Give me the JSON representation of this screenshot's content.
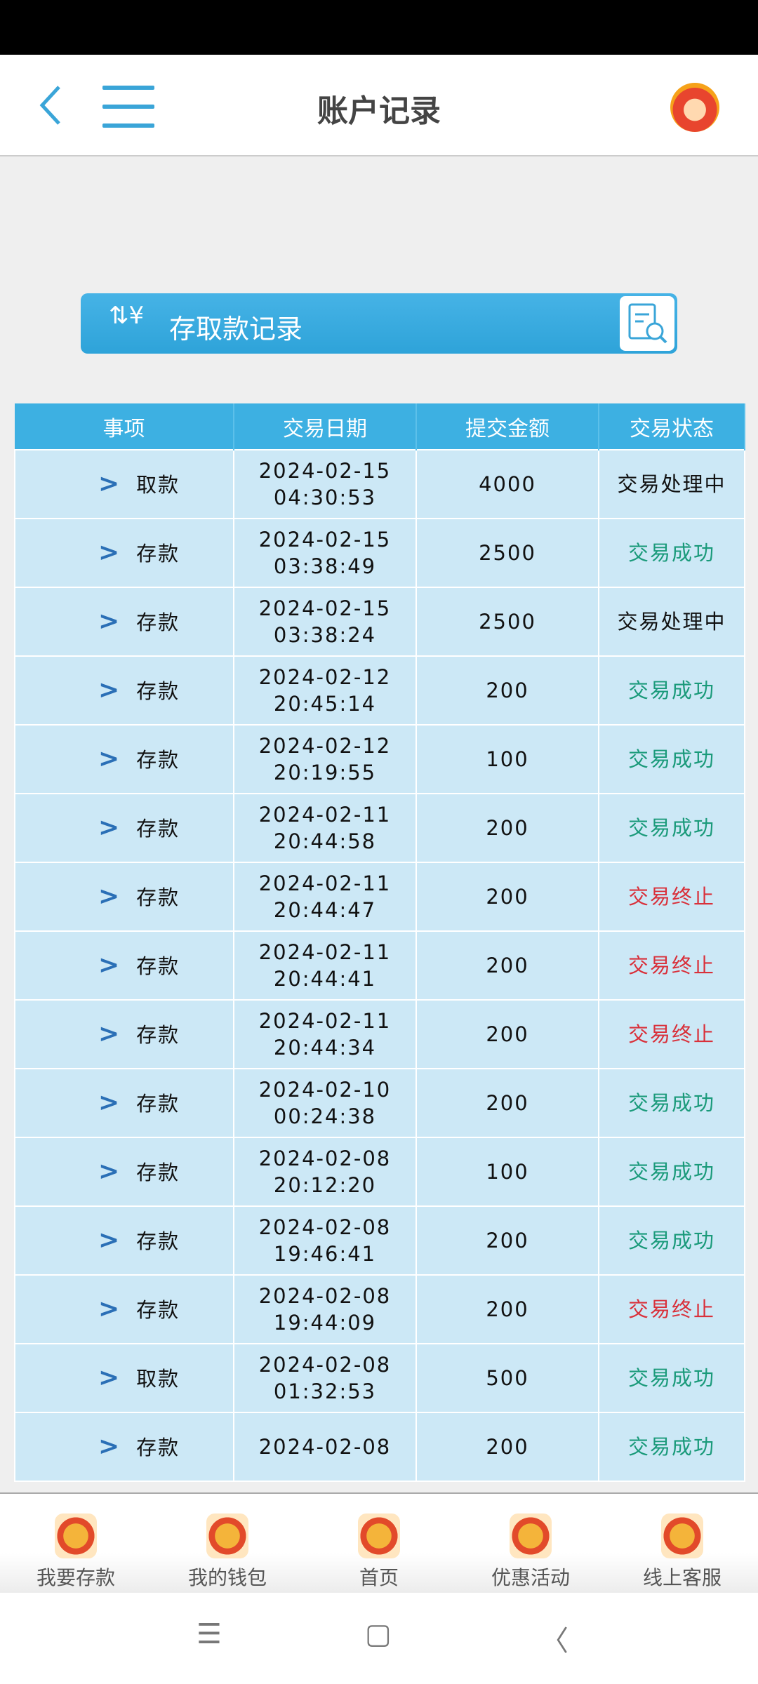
{
  "header": {
    "title": "账户记录",
    "back_icon": "chevron-left-icon",
    "menu_icon": "hamburger-icon",
    "avatar_icon": "dragon-avatar-icon"
  },
  "banner": {
    "label": "存取款记录",
    "left_icon": "yen-exchange-icon",
    "right_icon": "search-document-icon"
  },
  "colors": {
    "header": "#3db0e2",
    "row": "#cce8f6",
    "success": "#1a9a7a",
    "stopped": "#d9303a",
    "chevron": "#2a6fb6"
  },
  "table": {
    "columns": [
      "事项",
      "交易日期",
      "提交金额",
      "交易状态"
    ],
    "rows": [
      {
        "item": "取款",
        "date": "2024-02-15",
        "time": "04:30:53",
        "amount": "4000",
        "status": "交易处理中",
        "kind": "pend"
      },
      {
        "item": "存款",
        "date": "2024-02-15",
        "time": "03:38:49",
        "amount": "2500",
        "status": "交易成功",
        "kind": "ok"
      },
      {
        "item": "存款",
        "date": "2024-02-15",
        "time": "03:38:24",
        "amount": "2500",
        "status": "交易处理中",
        "kind": "pend"
      },
      {
        "item": "存款",
        "date": "2024-02-12",
        "time": "20:45:14",
        "amount": "200",
        "status": "交易成功",
        "kind": "ok"
      },
      {
        "item": "存款",
        "date": "2024-02-12",
        "time": "20:19:55",
        "amount": "100",
        "status": "交易成功",
        "kind": "ok"
      },
      {
        "item": "存款",
        "date": "2024-02-11",
        "time": "20:44:58",
        "amount": "200",
        "status": "交易成功",
        "kind": "ok"
      },
      {
        "item": "存款",
        "date": "2024-02-11",
        "time": "20:44:47",
        "amount": "200",
        "status": "交易终止",
        "kind": "stop"
      },
      {
        "item": "存款",
        "date": "2024-02-11",
        "time": "20:44:41",
        "amount": "200",
        "status": "交易终止",
        "kind": "stop"
      },
      {
        "item": "存款",
        "date": "2024-02-11",
        "time": "20:44:34",
        "amount": "200",
        "status": "交易终止",
        "kind": "stop"
      },
      {
        "item": "存款",
        "date": "2024-02-10",
        "time": "00:24:38",
        "amount": "200",
        "status": "交易成功",
        "kind": "ok"
      },
      {
        "item": "存款",
        "date": "2024-02-08",
        "time": "20:12:20",
        "amount": "100",
        "status": "交易成功",
        "kind": "ok"
      },
      {
        "item": "存款",
        "date": "2024-02-08",
        "time": "19:46:41",
        "amount": "200",
        "status": "交易成功",
        "kind": "ok"
      },
      {
        "item": "存款",
        "date": "2024-02-08",
        "time": "19:44:09",
        "amount": "200",
        "status": "交易终止",
        "kind": "stop"
      },
      {
        "item": "取款",
        "date": "2024-02-08",
        "time": "01:32:53",
        "amount": "500",
        "status": "交易成功",
        "kind": "ok"
      },
      {
        "item": "存款",
        "date": "2024-02-08",
        "time": "",
        "amount": "200",
        "status": "交易成功",
        "kind": "ok"
      }
    ]
  },
  "bottom_nav": [
    {
      "label": "我要存款",
      "icon": "dragon-deposit-icon"
    },
    {
      "label": "我的钱包",
      "icon": "dragon-wallet-icon"
    },
    {
      "label": "首页",
      "icon": "dragon-home-icon"
    },
    {
      "label": "优惠活动",
      "icon": "fa-promo-icon"
    },
    {
      "label": "线上客服",
      "icon": "fu-service-icon"
    }
  ],
  "system_nav": {
    "recents": "☰",
    "home": "▢",
    "back": "〈"
  }
}
